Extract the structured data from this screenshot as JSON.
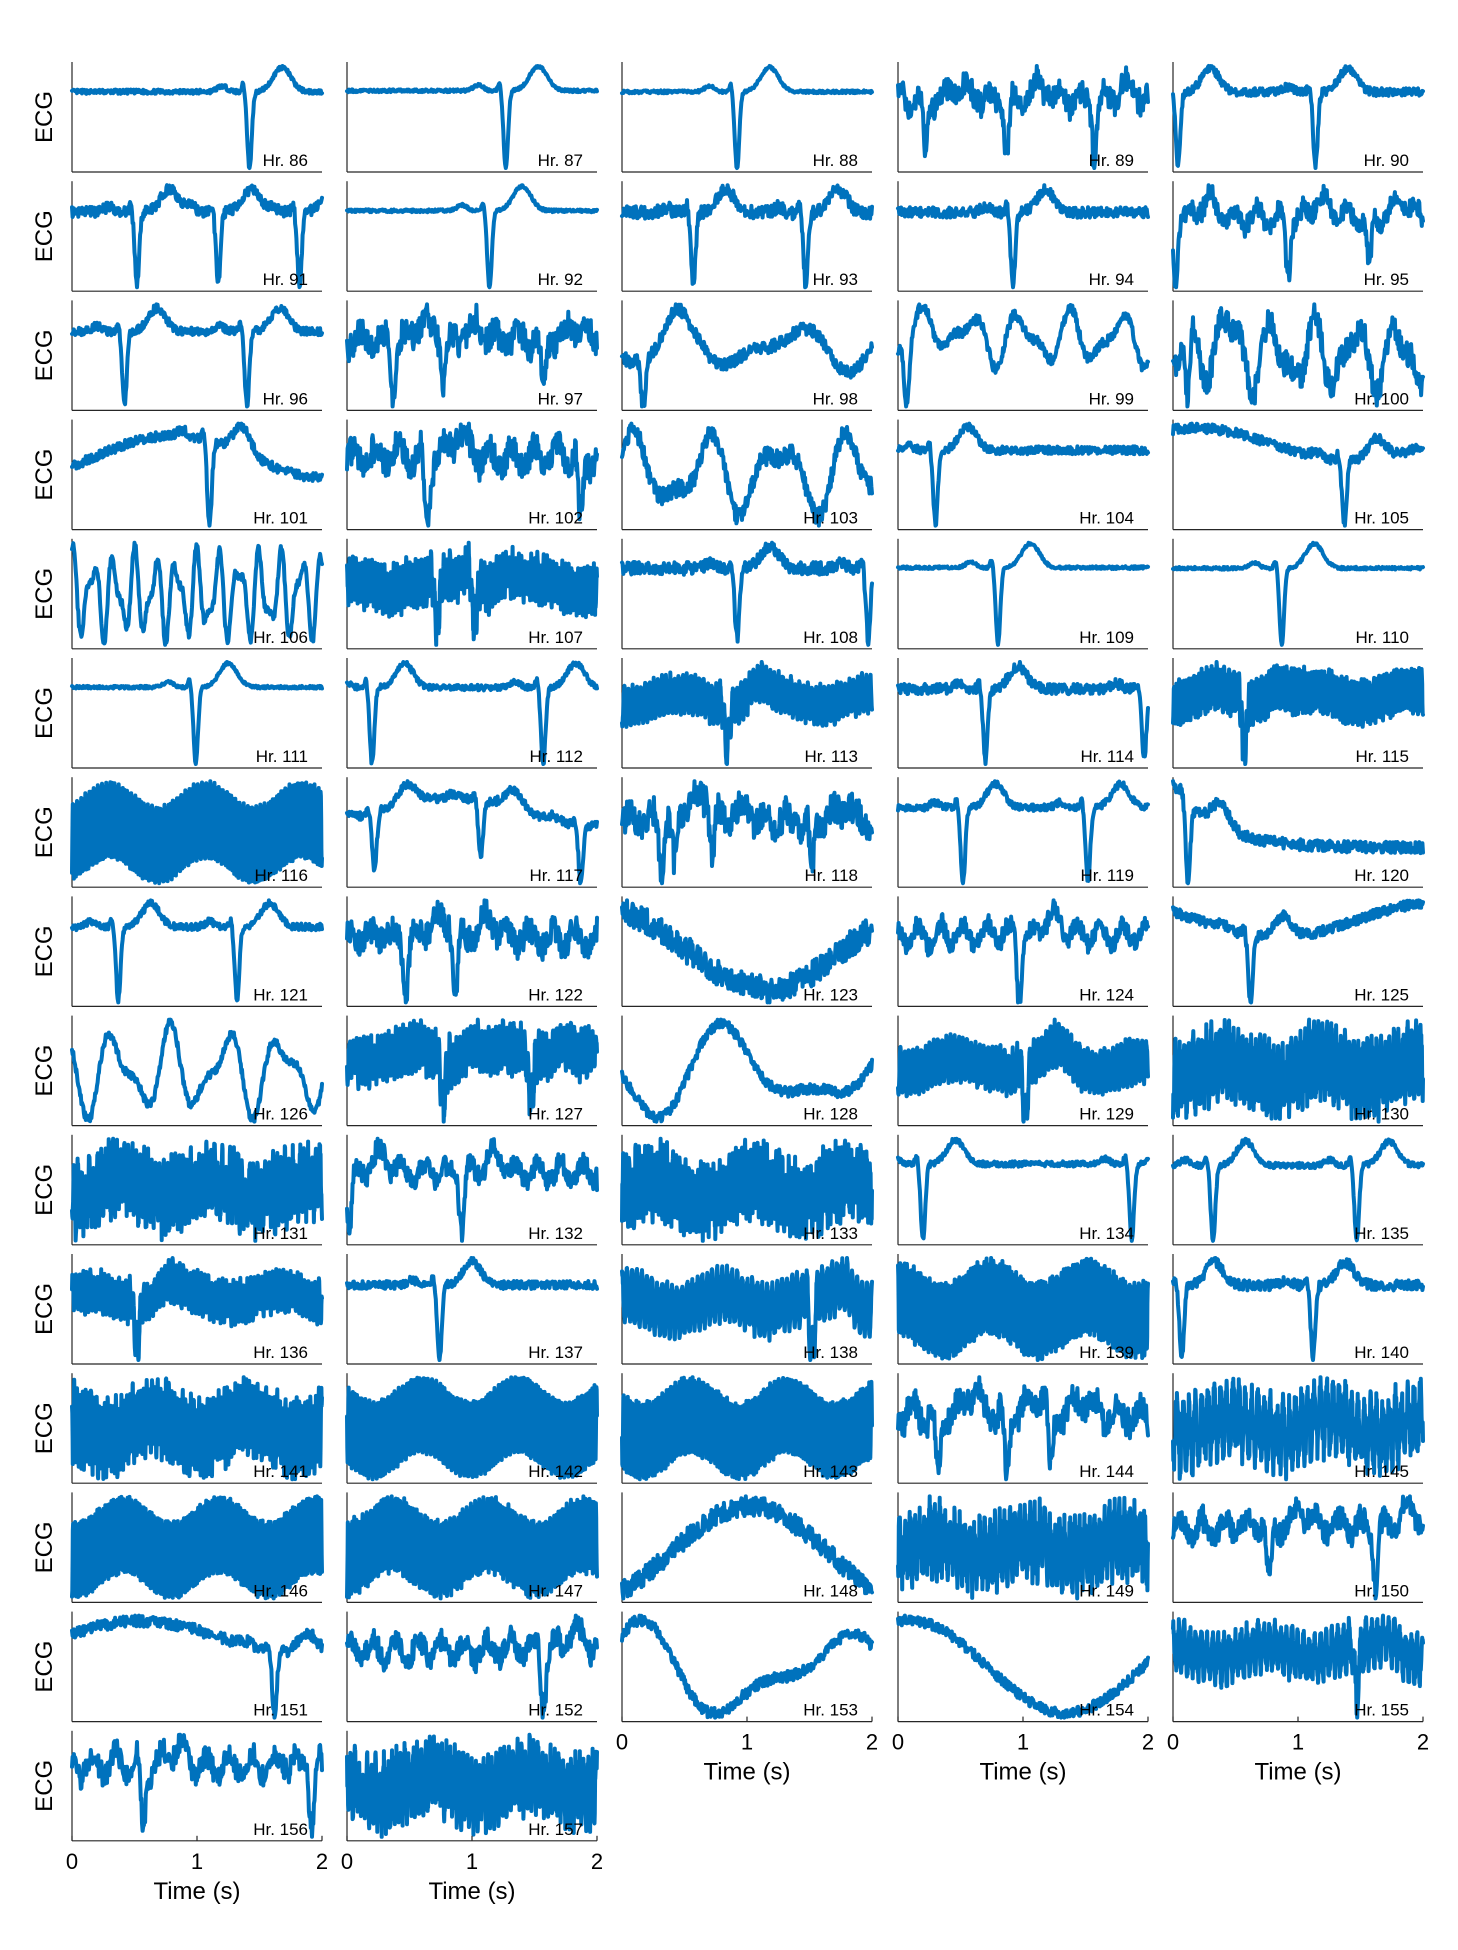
{
  "chart_data": {
    "type": "line",
    "layout": {
      "rows": 15,
      "cols": 5,
      "panel_count": 72
    },
    "ylabel": "ECG",
    "xlabel": "Time (s)",
    "xlim": [
      0,
      2
    ],
    "xticks": [
      "0",
      "1",
      "2"
    ],
    "line_color": "#0072BD",
    "panels": [
      {
        "label": "Hr. 86",
        "pattern": "normal",
        "beats": [
          1.4
        ],
        "p": 0.85,
        "noise": 0.03
      },
      {
        "label": "Hr. 87",
        "pattern": "normal",
        "beats": [
          1.25
        ],
        "p": 0.9,
        "noise": 0.02
      },
      {
        "label": "Hr. 88",
        "pattern": "normal",
        "beats": [
          0.9
        ],
        "p": 0.95,
        "noise": 0.02
      },
      {
        "label": "Hr. 89",
        "pattern": "noisy",
        "beats": [
          0.2,
          0.85,
          1.55
        ],
        "p": 0.6,
        "noise": 0.25
      },
      {
        "label": "Hr. 90",
        "pattern": "normal",
        "beats": [
          0.02,
          1.12
        ],
        "p": 0.9,
        "noise": 0.06
      },
      {
        "label": "Hr. 91",
        "pattern": "normal",
        "beats": [
          0.5,
          1.15,
          1.8
        ],
        "p": 0.7,
        "noise": 0.08
      },
      {
        "label": "Hr. 92",
        "pattern": "normal",
        "beats": [
          1.12
        ],
        "p": 0.95,
        "noise": 0.02
      },
      {
        "label": "Hr. 93",
        "pattern": "normal",
        "beats": [
          0.55,
          1.45
        ],
        "p": 0.7,
        "noise": 0.1
      },
      {
        "label": "Hr. 94",
        "pattern": "normal",
        "beats": [
          0.9
        ],
        "p": 0.6,
        "noise": 0.08
      },
      {
        "label": "Hr. 95",
        "pattern": "noisy",
        "beats": [
          0.0,
          0.9,
          1.55
        ],
        "p": 0.65,
        "noise": 0.18
      },
      {
        "label": "Hr. 96",
        "pattern": "normal",
        "beats": [
          0.4,
          1.38
        ],
        "p": 0.8,
        "noise": 0.06
      },
      {
        "label": "Hr. 97",
        "pattern": "noisy",
        "beats": [
          0.35,
          0.75,
          1.55
        ],
        "p": 0.6,
        "noise": 0.3
      },
      {
        "label": "Hr. 98",
        "pattern": "wave",
        "beats": [
          0.15
        ],
        "p": 0.7,
        "noise": 0.15,
        "freq": 2.2
      },
      {
        "label": "Hr. 99",
        "pattern": "wave",
        "beats": [
          0.05
        ],
        "p": 0.85,
        "noise": 0.1,
        "freq": 5
      },
      {
        "label": "Hr. 100",
        "pattern": "wave",
        "beats": [
          0.1
        ],
        "p": 0.5,
        "noise": 0.2,
        "freq": 6
      },
      {
        "label": "Hr. 101",
        "pattern": "drift",
        "beats": [
          1.08
        ],
        "p": 0.65,
        "noise": 0.06
      },
      {
        "label": "Hr. 102",
        "pattern": "noisy",
        "beats": [
          0.62,
          1.85
        ],
        "p": 0.6,
        "noise": 0.22
      },
      {
        "label": "Hr. 103",
        "pattern": "wave",
        "beats": [],
        "p": 0.5,
        "noise": 0.12,
        "freq": 3.5
      },
      {
        "label": "Hr. 104",
        "pattern": "normal",
        "beats": [
          0.28
        ],
        "p": 0.85,
        "noise": 0.06
      },
      {
        "label": "Hr. 105",
        "pattern": "drift",
        "beats": [
          1.35
        ],
        "p": 0.5,
        "noise": 0.08
      },
      {
        "label": "Hr. 106",
        "pattern": "wave",
        "beats": [],
        "p": 0.5,
        "noise": 0.05,
        "freq": 12
      },
      {
        "label": "Hr. 107",
        "pattern": "dense",
        "beats": [
          0.7,
          1.0
        ],
        "p": 0.5,
        "noise": 0.25,
        "freq": 40
      },
      {
        "label": "Hr. 108",
        "pattern": "normal",
        "beats": [
          0.9,
          1.95
        ],
        "p": 0.65,
        "noise": 0.1
      },
      {
        "label": "Hr. 109",
        "pattern": "normal",
        "beats": [
          0.78
        ],
        "p": 0.9,
        "noise": 0.02
      },
      {
        "label": "Hr. 110",
        "pattern": "normal",
        "beats": [
          0.85
        ],
        "p": 0.95,
        "noise": 0.02
      },
      {
        "label": "Hr. 111",
        "pattern": "normal",
        "beats": [
          0.97
        ],
        "p": 0.9,
        "noise": 0.02
      },
      {
        "label": "Hr. 112",
        "pattern": "normal",
        "beats": [
          0.18,
          1.55
        ],
        "p": 0.85,
        "noise": 0.04
      },
      {
        "label": "Hr. 113",
        "pattern": "dense",
        "beats": [
          0.82
        ],
        "p": 0.6,
        "noise": 0.12,
        "freq": 30
      },
      {
        "label": "Hr. 114",
        "pattern": "normal",
        "beats": [
          0.68,
          1.95
        ],
        "p": 0.7,
        "noise": 0.08
      },
      {
        "label": "Hr. 115",
        "pattern": "dense",
        "beats": [
          0.55
        ],
        "p": 0.5,
        "noise": 0.1,
        "freq": 50
      },
      {
        "label": "Hr. 116",
        "pattern": "dense",
        "beats": [],
        "p": 0.5,
        "noise": 0.02,
        "freq": 60
      },
      {
        "label": "Hr. 117",
        "pattern": "drift",
        "beats": [
          0.2,
          1.05,
          1.85
        ],
        "p": 0.6,
        "noise": 0.08
      },
      {
        "label": "Hr. 118",
        "pattern": "noisy",
        "beats": [
          0.3,
          0.4,
          0.7,
          1.5
        ],
        "p": 0.5,
        "noise": 0.35
      },
      {
        "label": "Hr. 119",
        "pattern": "normal",
        "beats": [
          0.5,
          1.5
        ],
        "p": 0.8,
        "noise": 0.05
      },
      {
        "label": "Hr. 120",
        "pattern": "decay",
        "beats": [
          0.1
        ],
        "p": 0.3,
        "noise": 0.08
      },
      {
        "label": "Hr. 121",
        "pattern": "normal",
        "beats": [
          0.35,
          1.3
        ],
        "p": 0.7,
        "noise": 0.05
      },
      {
        "label": "Hr. 122",
        "pattern": "noisy",
        "beats": [
          0.45,
          0.85
        ],
        "p": 0.55,
        "noise": 0.25
      },
      {
        "label": "Hr. 123",
        "pattern": "drift",
        "beats": [],
        "p": 0.5,
        "noise": 0.1
      },
      {
        "label": "Hr. 124",
        "pattern": "noisy",
        "beats": [
          0.95
        ],
        "p": 0.7,
        "noise": 0.15
      },
      {
        "label": "Hr. 125",
        "pattern": "drift",
        "beats": [
          0.6
        ],
        "p": 0.5,
        "noise": 0.08
      },
      {
        "label": "Hr. 126",
        "pattern": "wave",
        "beats": [],
        "p": 0.6,
        "noise": 0.05,
        "freq": 4.5
      },
      {
        "label": "Hr. 127",
        "pattern": "dense",
        "beats": [
          0.75,
          1.45
        ],
        "p": 0.6,
        "noise": 0.2,
        "freq": 35
      },
      {
        "label": "Hr. 128",
        "pattern": "wave",
        "beats": [],
        "p": 0.7,
        "noise": 0.06,
        "freq": 1.5
      },
      {
        "label": "Hr. 129",
        "pattern": "dense",
        "beats": [
          1.0
        ],
        "p": 0.5,
        "noise": 0.12,
        "freq": 30
      },
      {
        "label": "Hr. 130",
        "pattern": "dense",
        "beats": [],
        "p": 0.45,
        "noise": 0.25,
        "freq": 28
      },
      {
        "label": "Hr. 131",
        "pattern": "dense",
        "beats": [],
        "p": 0.5,
        "noise": 0.3,
        "freq": 32
      },
      {
        "label": "Hr. 132",
        "pattern": "noisy",
        "beats": [
          0.0,
          0.9
        ],
        "p": 0.4,
        "noise": 0.18
      },
      {
        "label": "Hr. 133",
        "pattern": "dense",
        "beats": [],
        "p": 0.5,
        "noise": 0.25,
        "freq": 40
      },
      {
        "label": "Hr. 134",
        "pattern": "normal",
        "beats": [
          0.18,
          1.85
        ],
        "p": 0.75,
        "noise": 0.04
      },
      {
        "label": "Hr. 135",
        "pattern": "normal",
        "beats": [
          0.3,
          1.45
        ],
        "p": 0.7,
        "noise": 0.04
      },
      {
        "label": "Hr. 136",
        "pattern": "dense",
        "beats": [
          0.5
        ],
        "p": 0.45,
        "noise": 0.18,
        "freq": 35
      },
      {
        "label": "Hr. 137",
        "pattern": "normal",
        "beats": [
          0.72
        ],
        "p": 0.5,
        "noise": 0.06
      },
      {
        "label": "Hr. 138",
        "pattern": "dense",
        "beats": [
          1.5
        ],
        "p": 0.5,
        "noise": 0.1,
        "freq": 25
      },
      {
        "label": "Hr. 139",
        "pattern": "dense",
        "beats": [],
        "p": 0.6,
        "noise": 0.05,
        "freq": 55
      },
      {
        "label": "Hr. 140",
        "pattern": "normal",
        "beats": [
          0.05,
          1.1
        ],
        "p": 0.75,
        "noise": 0.08
      },
      {
        "label": "Hr. 141",
        "pattern": "dense",
        "beats": [],
        "p": 0.5,
        "noise": 0.15,
        "freq": 45
      },
      {
        "label": "Hr. 142",
        "pattern": "dense",
        "beats": [],
        "p": 0.5,
        "noise": 0.02,
        "freq": 60
      },
      {
        "label": "Hr. 143",
        "pattern": "dense",
        "beats": [],
        "p": 0.5,
        "noise": 0.03,
        "freq": 58
      },
      {
        "label": "Hr. 144",
        "pattern": "noisy",
        "beats": [
          0.3,
          0.85,
          1.2
        ],
        "p": 0.45,
        "noise": 0.25
      },
      {
        "label": "Hr. 145",
        "pattern": "dense",
        "beats": [],
        "p": 0.5,
        "noise": 0.3,
        "freq": 20
      },
      {
        "label": "Hr. 146",
        "pattern": "dense",
        "beats": [],
        "p": 0.5,
        "noise": 0.02,
        "freq": 62
      },
      {
        "label": "Hr. 147",
        "pattern": "dense",
        "beats": [],
        "p": 0.5,
        "noise": 0.05,
        "freq": 60
      },
      {
        "label": "Hr. 148",
        "pattern": "drift",
        "beats": [],
        "p": 0.4,
        "noise": 0.06
      },
      {
        "label": "Hr. 149",
        "pattern": "dense",
        "beats": [],
        "p": 0.5,
        "noise": 0.35,
        "freq": 25
      },
      {
        "label": "Hr. 150",
        "pattern": "noisy",
        "beats": [
          0.75,
          1.6
        ],
        "p": 0.5,
        "noise": 0.22
      },
      {
        "label": "Hr. 151",
        "pattern": "drift",
        "beats": [
          1.6
        ],
        "p": 0.7,
        "noise": 0.1
      },
      {
        "label": "Hr. 152",
        "pattern": "noisy",
        "beats": [
          1.55
        ],
        "p": 0.55,
        "noise": 0.2
      },
      {
        "label": "Hr. 153",
        "pattern": "wave",
        "beats": [],
        "p": 0.4,
        "noise": 0.06,
        "freq": 1.3
      },
      {
        "label": "Hr. 154",
        "pattern": "drift",
        "beats": [],
        "p": 0.9,
        "noise": 0.03
      },
      {
        "label": "Hr. 155",
        "pattern": "dense",
        "beats": [
          1.45
        ],
        "p": 0.5,
        "noise": 0.22,
        "freq": 22
      },
      {
        "label": "Hr. 156",
        "pattern": "noisy",
        "beats": [
          0.55,
          1.9
        ],
        "p": 0.6,
        "noise": 0.18
      },
      {
        "label": "Hr. 157",
        "pattern": "dense",
        "beats": [],
        "p": 0.5,
        "noise": 0.3,
        "freq": 30
      }
    ]
  }
}
